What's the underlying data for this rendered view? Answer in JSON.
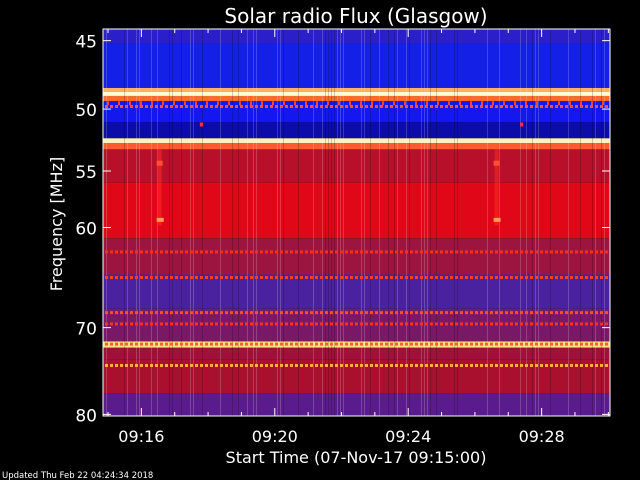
{
  "chart_data": {
    "type": "heatmap",
    "title": "Solar radio Flux (Glasgow)",
    "xlabel": "Start Time (07-Nov-17 09:15:00)",
    "ylabel": "Frequency [MHz]",
    "x_tick_labels": [
      "09:16",
      "09:20",
      "09:24",
      "09:28"
    ],
    "x_ticks_minutes": [
      16,
      20,
      24,
      28
    ],
    "x_range_minutes": [
      14.85,
      30.05
    ],
    "y_ticks": [
      45,
      50,
      55,
      60,
      70,
      80
    ],
    "y_range": [
      44.2,
      80.2
    ],
    "y_scale": "log",
    "bands": [
      {
        "f0": 44.2,
        "f1": 45.2,
        "color": "#2a1fc9"
      },
      {
        "f0": 45.2,
        "f1": 48.4,
        "color": "#1420e6"
      },
      {
        "f0": 48.4,
        "f1": 48.7,
        "color": "#ffb060"
      },
      {
        "f0": 48.7,
        "f1": 49.0,
        "color": "#fffad0"
      },
      {
        "f0": 49.0,
        "f1": 49.4,
        "color": "#ff6a30"
      },
      {
        "f0": 49.4,
        "f1": 51.0,
        "color": "#1418ee"
      },
      {
        "f0": 51.0,
        "f1": 52.3,
        "color": "#0c0ca8"
      },
      {
        "f0": 52.3,
        "f1": 52.7,
        "color": "#fff0c0"
      },
      {
        "f0": 52.7,
        "f1": 53.2,
        "color": "#ff5a30"
      },
      {
        "f0": 53.2,
        "f1": 56.0,
        "color": "#b8102a"
      },
      {
        "f0": 56.0,
        "f1": 61.0,
        "color": "#e00818"
      },
      {
        "f0": 61.0,
        "f1": 64.5,
        "color": "#9c1440"
      },
      {
        "f0": 64.5,
        "f1": 68.0,
        "color": "#4a22a0"
      },
      {
        "f0": 68.0,
        "f1": 71.5,
        "color": "#7a1868"
      },
      {
        "f0": 71.5,
        "f1": 72.2,
        "color": "#ffe080"
      },
      {
        "f0": 72.2,
        "f1": 73.5,
        "color": "#a0103a"
      },
      {
        "f0": 73.5,
        "f1": 77.5,
        "color": "#a8102e"
      },
      {
        "f0": 77.5,
        "f1": 80.2,
        "color": "#5a1c8c"
      }
    ],
    "dotted_lines": [
      {
        "f": 49.8,
        "color": "#ff5040"
      },
      {
        "f": 62.3,
        "color": "#ff3010"
      },
      {
        "f": 64.8,
        "color": "#ff4020"
      },
      {
        "f": 68.4,
        "color": "#ff5020"
      },
      {
        "f": 69.6,
        "color": "#ff3020"
      },
      {
        "f": 71.8,
        "color": "#ff6030"
      },
      {
        "f": 74.2,
        "color": "#ffb040"
      }
    ],
    "bursts": [
      {
        "t": 16.55,
        "f0": 53.2,
        "f1": 59.8
      },
      {
        "t": 26.65,
        "f0": 53.2,
        "f1": 59.8
      }
    ],
    "point_marks": [
      {
        "t": 17.8,
        "f": 51.2,
        "color": "#ff3030"
      },
      {
        "t": 27.4,
        "f": 51.2,
        "color": "#ff3030"
      }
    ]
  },
  "footer": {
    "updated": "Updated Thu Feb 22 04:24:34 2018"
  }
}
